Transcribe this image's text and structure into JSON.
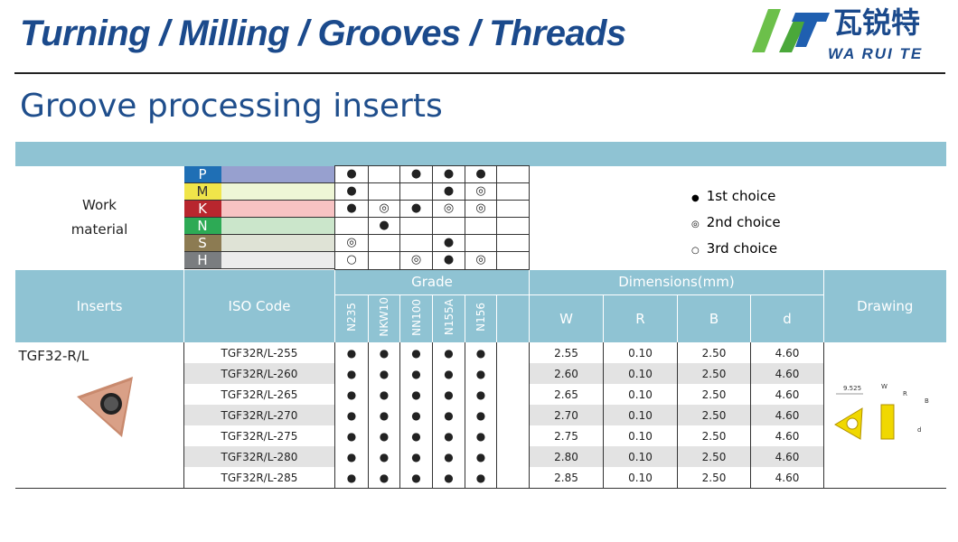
{
  "header": {
    "title": "Turning / Milling / Grooves / Threads",
    "logo_cn": "瓦锐特",
    "logo_en": "WA RUI TE"
  },
  "page_title": "Groove processing inserts",
  "work_material": {
    "label_line1": "Work",
    "label_line2": "material",
    "rows": [
      {
        "code": "P",
        "color": "#1f6fb5",
        "tint": "#97a0cf",
        "marks": [
          "●",
          "",
          "●",
          "●",
          "●",
          ""
        ]
      },
      {
        "code": "M",
        "color": "#f0e54a",
        "tint": "#eef6d6",
        "marks": [
          "●",
          "",
          "",
          "●",
          "◎",
          ""
        ]
      },
      {
        "code": "K",
        "color": "#b8262e",
        "tint": "#f7c3c3",
        "marks": [
          "●",
          "◎",
          "●",
          "◎",
          "◎",
          ""
        ]
      },
      {
        "code": "N",
        "color": "#2daa55",
        "tint": "#cbe6cb",
        "marks": [
          "",
          "●",
          "",
          "",
          "",
          ""
        ]
      },
      {
        "code": "S",
        "color": "#8c7b52",
        "tint": "#dfe3d6",
        "marks": [
          "◎",
          "",
          "",
          "●",
          "",
          ""
        ]
      },
      {
        "code": "H",
        "color": "#7a7d80",
        "tint": "#ececec",
        "marks": [
          "○",
          "",
          "◎",
          "●",
          "◎",
          ""
        ]
      }
    ]
  },
  "legend": [
    {
      "symbol": "●",
      "label": "1st choice"
    },
    {
      "symbol": "◎",
      "label": "2nd choice"
    },
    {
      "symbol": "○",
      "label": "3rd choice"
    }
  ],
  "columns": {
    "inserts": "Inserts",
    "iso": "ISO Code",
    "grade": "Grade",
    "grades": [
      "N235",
      "NKW10",
      "NN100",
      "N155A",
      "N156",
      ""
    ],
    "dims": "Dimensions(mm)",
    "dim_cols": [
      "W",
      "R",
      "B",
      "d"
    ],
    "drawing": "Drawing"
  },
  "insert_name": "TGF32-R/L",
  "drawing_labels": {
    "w": "W",
    "r": "R",
    "b": "B",
    "d": "d",
    "size": "9.525"
  },
  "rows": [
    {
      "iso": "TGF32R/L-255",
      "g": [
        "●",
        "●",
        "●",
        "●",
        "●",
        ""
      ],
      "W": "2.55",
      "R": "0.10",
      "B": "2.50",
      "d": "4.60"
    },
    {
      "iso": "TGF32R/L-260",
      "g": [
        "●",
        "●",
        "●",
        "●",
        "●",
        ""
      ],
      "W": "2.60",
      "R": "0.10",
      "B": "2.50",
      "d": "4.60"
    },
    {
      "iso": "TGF32R/L-265",
      "g": [
        "●",
        "●",
        "●",
        "●",
        "●",
        ""
      ],
      "W": "2.65",
      "R": "0.10",
      "B": "2.50",
      "d": "4.60"
    },
    {
      "iso": "TGF32R/L-270",
      "g": [
        "●",
        "●",
        "●",
        "●",
        "●",
        ""
      ],
      "W": "2.70",
      "R": "0.10",
      "B": "2.50",
      "d": "4.60"
    },
    {
      "iso": "TGF32R/L-275",
      "g": [
        "●",
        "●",
        "●",
        "●",
        "●",
        ""
      ],
      "W": "2.75",
      "R": "0.10",
      "B": "2.50",
      "d": "4.60"
    },
    {
      "iso": "TGF32R/L-280",
      "g": [
        "●",
        "●",
        "●",
        "●",
        "●",
        ""
      ],
      "W": "2.80",
      "R": "0.10",
      "B": "2.50",
      "d": "4.60"
    },
    {
      "iso": "TGF32R/L-285",
      "g": [
        "●",
        "●",
        "●",
        "●",
        "●",
        ""
      ],
      "W": "2.85",
      "R": "0.10",
      "B": "2.50",
      "d": "4.60"
    }
  ]
}
